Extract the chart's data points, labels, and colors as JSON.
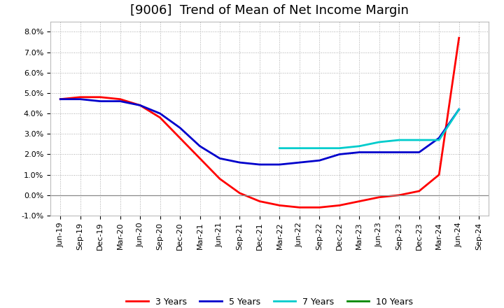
{
  "title": "[9006]  Trend of Mean of Net Income Margin",
  "ylim": [
    -0.01,
    0.085
  ],
  "yticks": [
    -0.01,
    0.0,
    0.01,
    0.02,
    0.03,
    0.04,
    0.05,
    0.06,
    0.07,
    0.08
  ],
  "background_color": "#ffffff",
  "plot_bg_color": "#ffffff",
  "grid_color": "#aaaaaa",
  "series": [
    {
      "name": "3 Years",
      "color": "#ff0000",
      "x_indices": [
        0,
        1,
        2,
        3,
        4,
        5,
        6,
        7,
        8,
        9,
        10,
        11,
        12,
        13,
        14,
        15,
        16,
        17,
        18,
        19,
        20
      ],
      "values": [
        0.047,
        0.048,
        0.048,
        0.047,
        0.044,
        0.038,
        0.028,
        0.018,
        0.008,
        0.001,
        -0.003,
        -0.005,
        -0.006,
        -0.006,
        -0.005,
        -0.003,
        -0.001,
        0.0,
        0.002,
        0.01,
        0.077
      ]
    },
    {
      "name": "5 Years",
      "color": "#0000cc",
      "x_indices": [
        0,
        1,
        2,
        3,
        4,
        5,
        6,
        7,
        8,
        9,
        10,
        11,
        12,
        13,
        14,
        15,
        16,
        17,
        18,
        19,
        20
      ],
      "values": [
        0.047,
        0.047,
        0.046,
        0.046,
        0.044,
        0.04,
        0.033,
        0.024,
        0.018,
        0.016,
        0.015,
        0.015,
        0.016,
        0.017,
        0.02,
        0.021,
        0.021,
        0.021,
        0.021,
        0.028,
        0.042
      ]
    },
    {
      "name": "7 Years",
      "color": "#00cccc",
      "x_indices": [
        11,
        12,
        13,
        14,
        15,
        16,
        17,
        18,
        19,
        20
      ],
      "values": [
        0.023,
        0.023,
        0.023,
        0.023,
        0.024,
        0.026,
        0.027,
        0.027,
        0.027,
        0.042
      ]
    },
    {
      "name": "10 Years",
      "color": "#008800",
      "x_indices": [],
      "values": []
    }
  ],
  "x_tick_labels": [
    "Jun-19",
    "Sep-19",
    "Dec-19",
    "Mar-20",
    "Jun-20",
    "Sep-20",
    "Dec-20",
    "Mar-21",
    "Jun-21",
    "Sep-21",
    "Dec-21",
    "Mar-22",
    "Jun-22",
    "Sep-22",
    "Dec-22",
    "Mar-23",
    "Jun-23",
    "Sep-23",
    "Dec-23",
    "Mar-24",
    "Jun-24",
    "Sep-24"
  ],
  "title_fontsize": 13,
  "tick_fontsize": 8,
  "legend_fontsize": 9
}
